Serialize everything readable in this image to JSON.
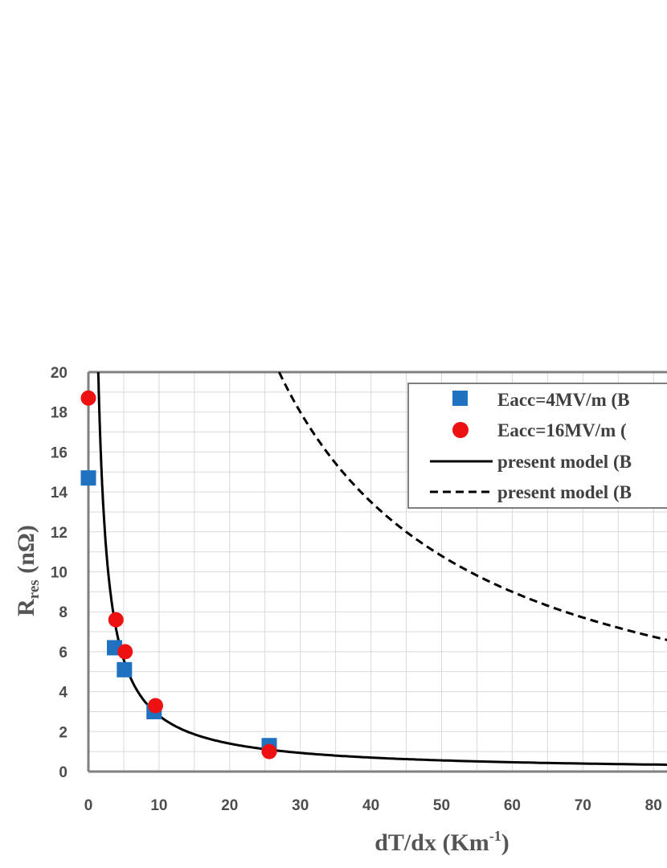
{
  "chart_data": {
    "type": "scatter",
    "xlabel": "dT/dx  (Km",
    "xlabel_sup": "-1",
    "xlabel_end": ")",
    "ylabel_main": "R",
    "ylabel_sub": "res",
    "ylabel_unit": " (nΩ)",
    "xlim": [
      0,
      82
    ],
    "ylim": [
      0,
      20
    ],
    "x_ticks": [
      0,
      10,
      20,
      30,
      40,
      50,
      60,
      70,
      80
    ],
    "y_ticks": [
      0,
      2,
      4,
      6,
      8,
      10,
      12,
      14,
      16,
      18,
      20
    ],
    "grid": true,
    "legend_position": "top-right",
    "series": [
      {
        "name": "Eacc=4MV/m (B",
        "marker": "square",
        "color": "#1f72c0",
        "points": [
          [
            0,
            14.7
          ],
          [
            3.7,
            6.2
          ],
          [
            5.1,
            5.1
          ],
          [
            9.3,
            3.0
          ],
          [
            25.6,
            1.3
          ]
        ]
      },
      {
        "name": "Eacc=16MV/m (",
        "marker": "circle",
        "color": "#ee1111",
        "points": [
          [
            0,
            18.7
          ],
          [
            3.9,
            7.6
          ],
          [
            5.2,
            6.0
          ],
          [
            9.5,
            3.3
          ],
          [
            25.6,
            1.0
          ]
        ]
      },
      {
        "name": "present model (B",
        "line": "solid",
        "color": "#000000",
        "k": 28
      },
      {
        "name": "present model (B",
        "line": "dashed",
        "color": "#000000",
        "k": 540
      }
    ]
  }
}
